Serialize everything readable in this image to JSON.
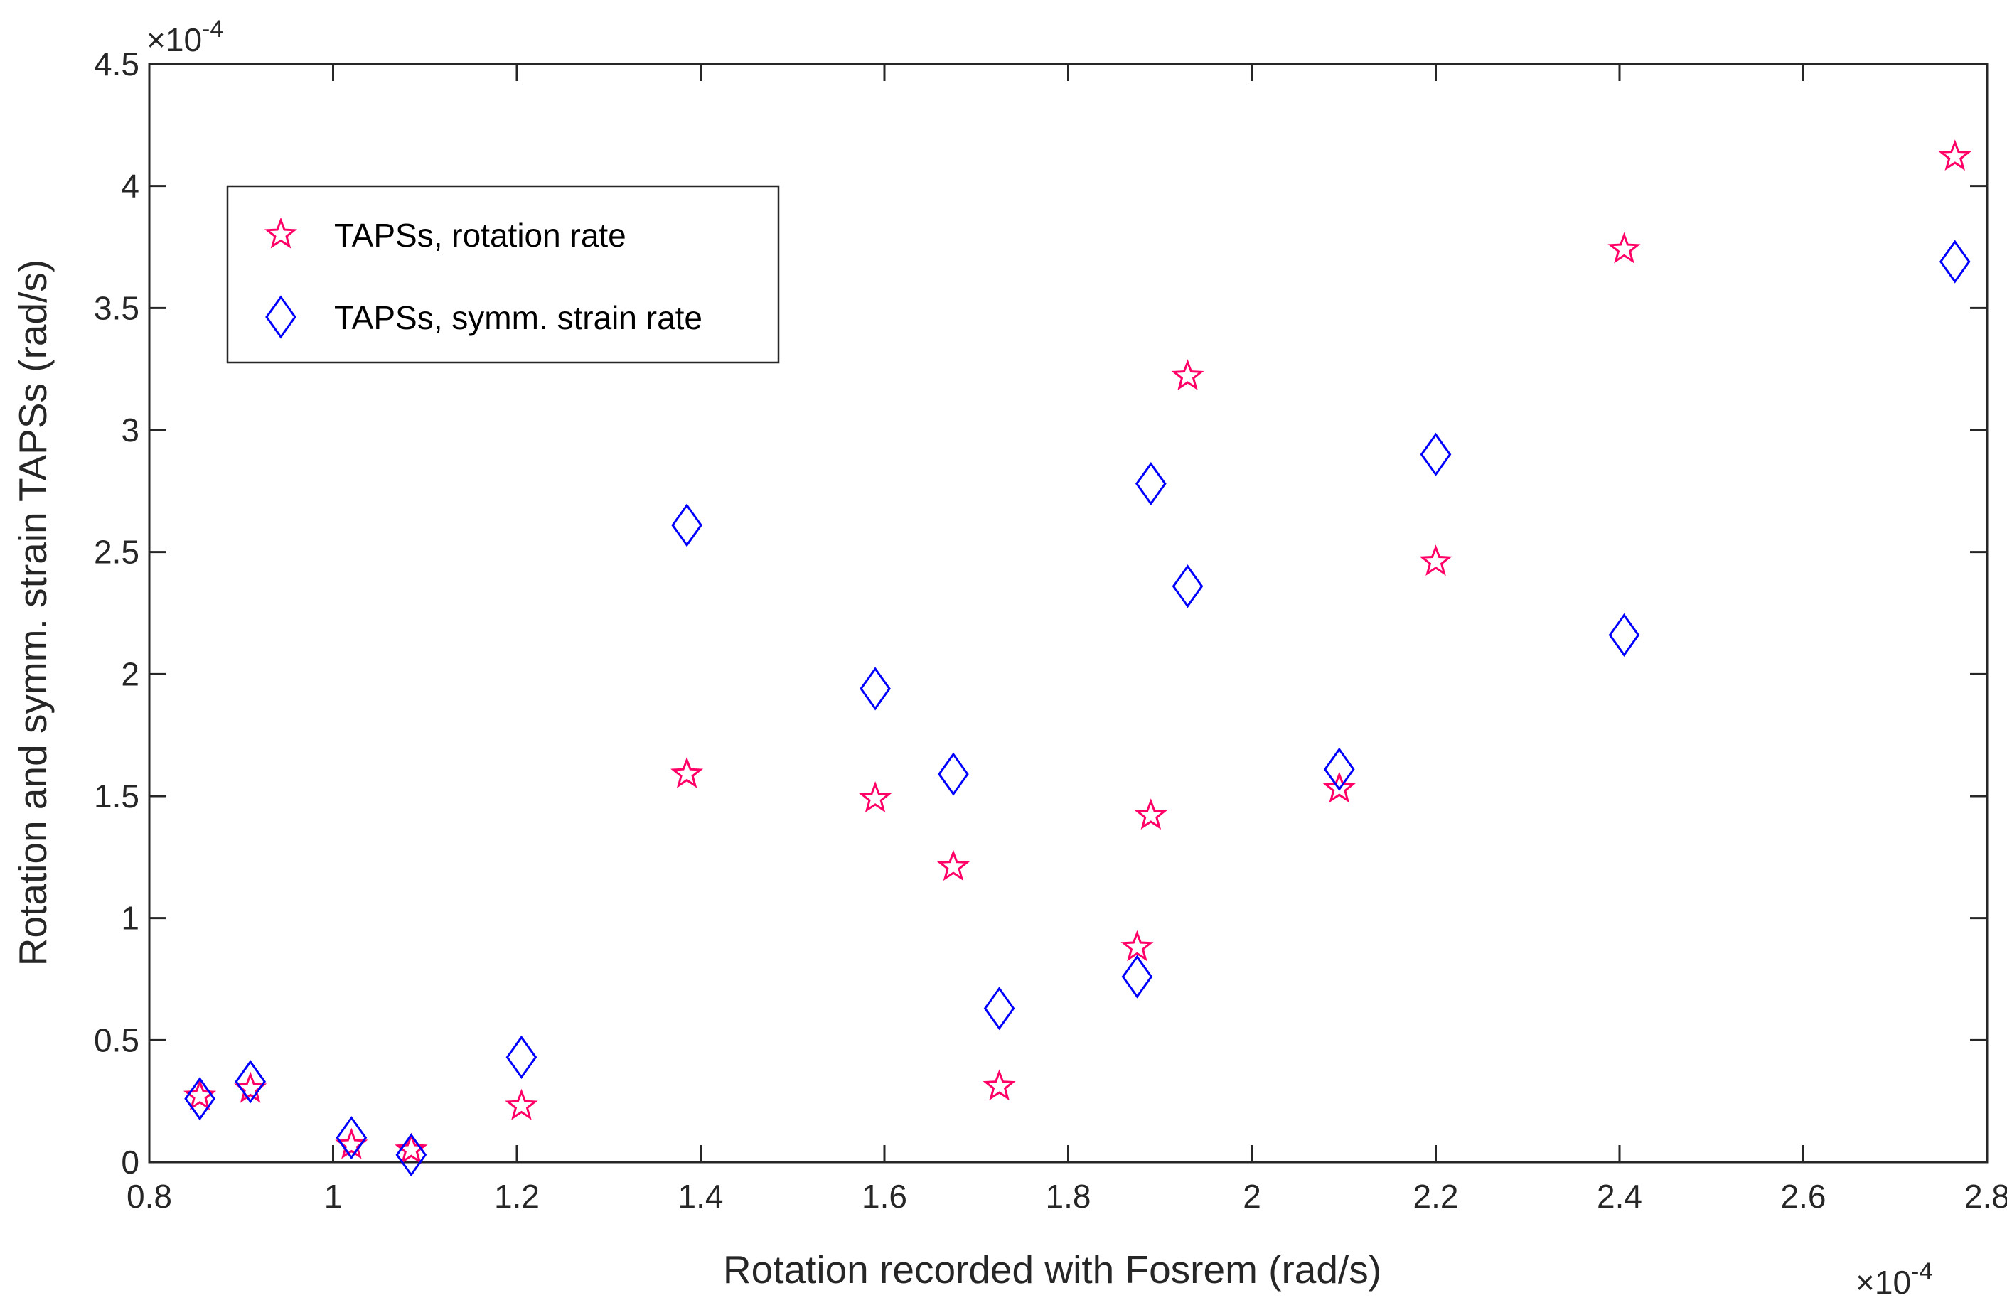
{
  "chart_data": {
    "type": "scatter",
    "title": "",
    "xlabel": "Rotation recorded with Fosrem (rad/s)",
    "ylabel": "Rotation and symm. strain TAPSs (rad/s)",
    "x_multiplier": "×10",
    "x_exponent": "-4",
    "y_multiplier": "×10",
    "y_exponent": "-4",
    "xlim": [
      0.8,
      2.8
    ],
    "ylim": [
      0,
      4.5
    ],
    "x_ticks": [
      "0.8",
      "1",
      "1.2",
      "1.4",
      "1.6",
      "1.8",
      "2",
      "2.2",
      "2.4",
      "2.6",
      "2.8"
    ],
    "y_ticks": [
      "0",
      "0.5",
      "1",
      "1.5",
      "2",
      "2.5",
      "3",
      "3.5",
      "4",
      "4.5"
    ],
    "grid": false,
    "legend_position": "top-left",
    "series": [
      {
        "name": "TAPSs, rotation rate",
        "marker": "star",
        "color": "#ff0066",
        "points": [
          [
            0.855,
            0.27
          ],
          [
            0.91,
            0.3
          ],
          [
            1.02,
            0.07
          ],
          [
            1.085,
            0.05
          ],
          [
            1.205,
            0.23
          ],
          [
            1.385,
            1.59
          ],
          [
            1.59,
            1.49
          ],
          [
            1.675,
            1.21
          ],
          [
            1.725,
            0.31
          ],
          [
            1.875,
            0.88
          ],
          [
            1.89,
            1.42
          ],
          [
            1.93,
            3.22
          ],
          [
            2.095,
            1.53
          ],
          [
            2.2,
            2.46
          ],
          [
            2.405,
            3.74
          ],
          [
            2.765,
            4.12
          ]
        ]
      },
      {
        "name": "TAPSs, symm. strain rate",
        "marker": "diamond",
        "color": "#0000ff",
        "points": [
          [
            0.855,
            0.26
          ],
          [
            0.91,
            0.33
          ],
          [
            1.02,
            0.1
          ],
          [
            1.085,
            0.03
          ],
          [
            1.205,
            0.43
          ],
          [
            1.385,
            2.61
          ],
          [
            1.59,
            1.94
          ],
          [
            1.675,
            1.59
          ],
          [
            1.725,
            0.63
          ],
          [
            1.875,
            0.76
          ],
          [
            1.89,
            2.78
          ],
          [
            1.93,
            2.36
          ],
          [
            2.095,
            1.61
          ],
          [
            2.2,
            2.9
          ],
          [
            2.405,
            2.16
          ],
          [
            2.765,
            3.69
          ]
        ]
      }
    ]
  }
}
